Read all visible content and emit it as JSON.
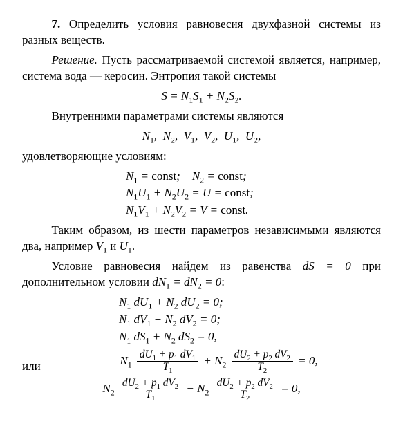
{
  "problem_number": "7.",
  "problem_text": "Определить условия равновесия двухфазной системы из разных веществ.",
  "sol_heading": "Решение.",
  "sol_p1": " Пусть рассматриваемой системой является, например, система вода — керосин. Энтропия такой системы",
  "eq_S": "S = N₁S₁ + N₂S₂.",
  "p2": "Внутренними параметрами системы являются",
  "eq_params": "N₁,  N₂,  V₁,  V₂,  U₁,  U₂,",
  "p3": "удовлетворяющие условиям:",
  "eq_c1a": "N₁ = const;",
  "eq_c1b": "N₂ = const;",
  "eq_c2": "N₁U₁ + N₂U₂ = U = const;",
  "eq_c3": "N₁V₁ + N₂V₂ = V = const.",
  "p4": "Таким образом, из шести параметров независимыми являются два, например V₁ и U₁.",
  "p5a": "Условие равновесия найдем из равенства ",
  "p5_dS": "dS = 0",
  "p5b": " при дополнительном условии ",
  "p5_dN": "dN₁ = dN₂ = 0:",
  "eq_d1": "N₁ dU₁ + N₂ dU₂ = 0;",
  "eq_d2": "N₁ dV₁ + N₂ dV₂ = 0;",
  "eq_d3": "N₁ dS₁ + N₂ dS₂ = 0,",
  "or_label": "или",
  "longA": {
    "N1": "N₁",
    "num1": "dU₁ + p₁ dV₁",
    "den1": "T₁",
    "plus": " + ",
    "N2": "N₂",
    "num2": "dU₂ + p₂ dV₂",
    "den2": "T₂",
    "tail": " = 0,"
  },
  "longB": {
    "N2a": "N₂",
    "num1": "dU₂ + p₁ dV₂",
    "den1": "T₁",
    "minus": " − ",
    "N2b": "N₂",
    "num2": "dU₂ + p₂ dV₂",
    "den2": "T₂",
    "tail": " = 0,"
  }
}
